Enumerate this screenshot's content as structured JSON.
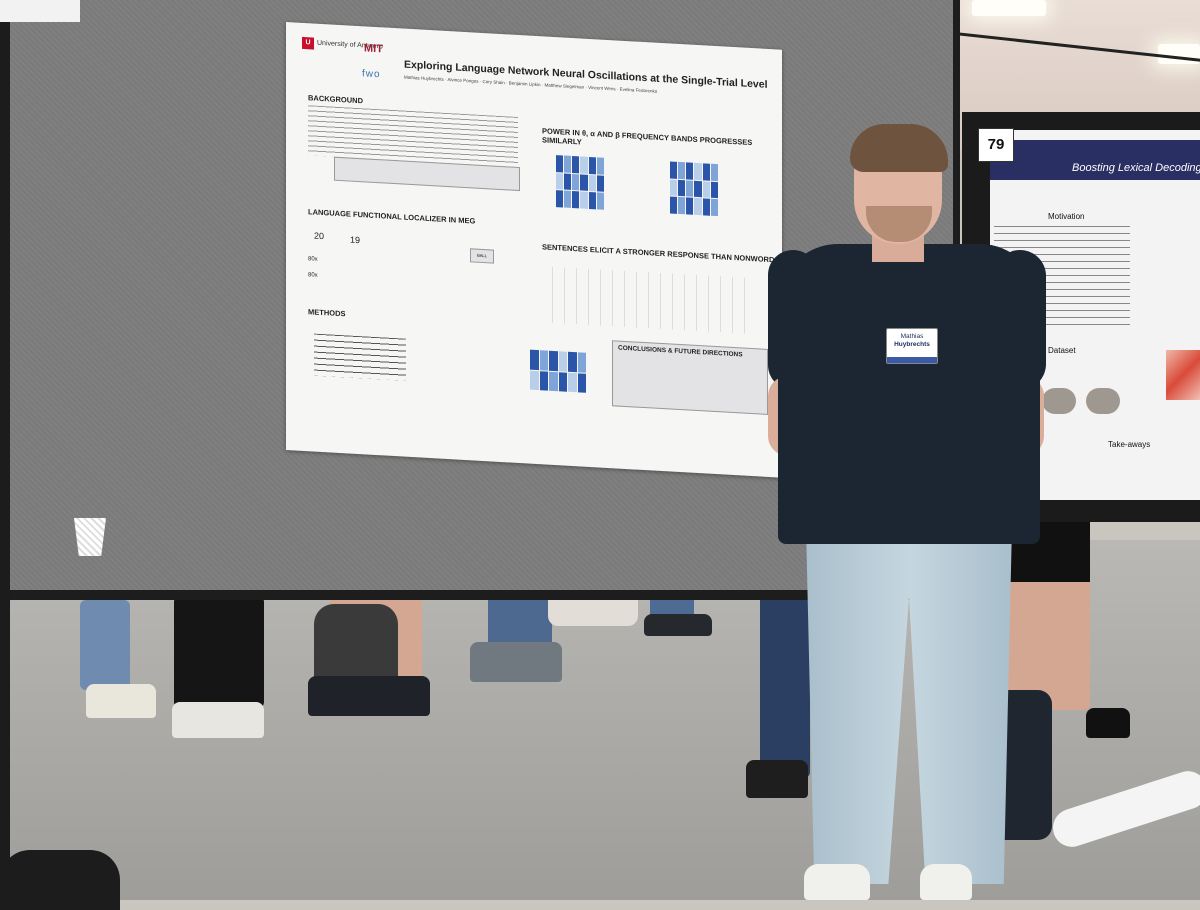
{
  "poster_main": {
    "title": "Exploring Language Network Neural Oscillations at the Single-Trial Level",
    "university": "University of Antwerp",
    "logo_mit": "MIT",
    "logo_fwo": "fwo",
    "sections": {
      "background": "BACKGROUND",
      "power": "POWER IN θ, α AND β FREQUENCY BANDS PROGRESSES SIMILARLY",
      "localizer": "LANGUAGE FUNCTIONAL LOCALIZER IN MEG",
      "sentences": "SENTENCES ELICIT A STRONGER RESPONSE THAN NONWORDS",
      "methods": "METHODS",
      "conclusions": "CONCLUSIONS & FUTURE DIRECTIONS"
    },
    "stats": {
      "n1": "20",
      "n2": "19",
      "n3": "80x",
      "n4": "80x"
    },
    "ball_label": "BALL"
  },
  "poster_second": {
    "number": "79",
    "title": "Boosting Lexical Decoding by Integr",
    "motivation": "Motivation",
    "dataset": "Dataset",
    "takeaways": "Take-aways"
  },
  "badge": {
    "line1": "Mathias",
    "line2": "Huybrechts"
  }
}
